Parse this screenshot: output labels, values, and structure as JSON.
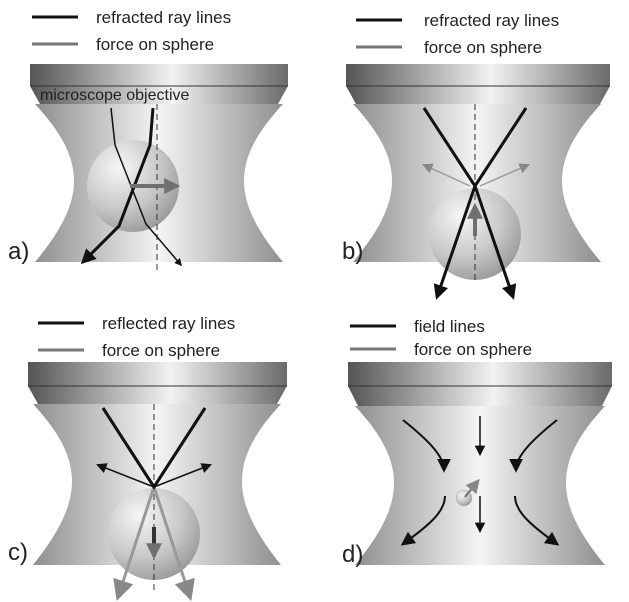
{
  "figure": {
    "panels": [
      {
        "label": "a)",
        "legend": [
          {
            "text": "refracted ray lines",
            "line_color": "#111111"
          },
          {
            "text": "force on sphere",
            "line_color": "#777777"
          }
        ],
        "objective_label": "microscope objective"
      },
      {
        "label": "b)",
        "legend": [
          {
            "text": "refracted ray lines",
            "line_color": "#111111"
          },
          {
            "text": "force on sphere",
            "line_color": "#777777"
          }
        ]
      },
      {
        "label": "c)",
        "legend": [
          {
            "text": "reflected ray lines",
            "line_color": "#111111"
          },
          {
            "text": "force on sphere",
            "line_color": "#777777"
          }
        ]
      },
      {
        "label": "d)",
        "legend": [
          {
            "text": "field lines",
            "line_color": "#111111"
          },
          {
            "text": "force on sphere",
            "line_color": "#777777"
          }
        ]
      }
    ]
  },
  "colors": {
    "ray": "#111111",
    "force": "#6f6f6f",
    "beam_light": "#f2f2f2",
    "beam_dark": "#9a9a9a",
    "objective_dark": "#5a5a5a",
    "objective_light": "#eeeeee"
  }
}
